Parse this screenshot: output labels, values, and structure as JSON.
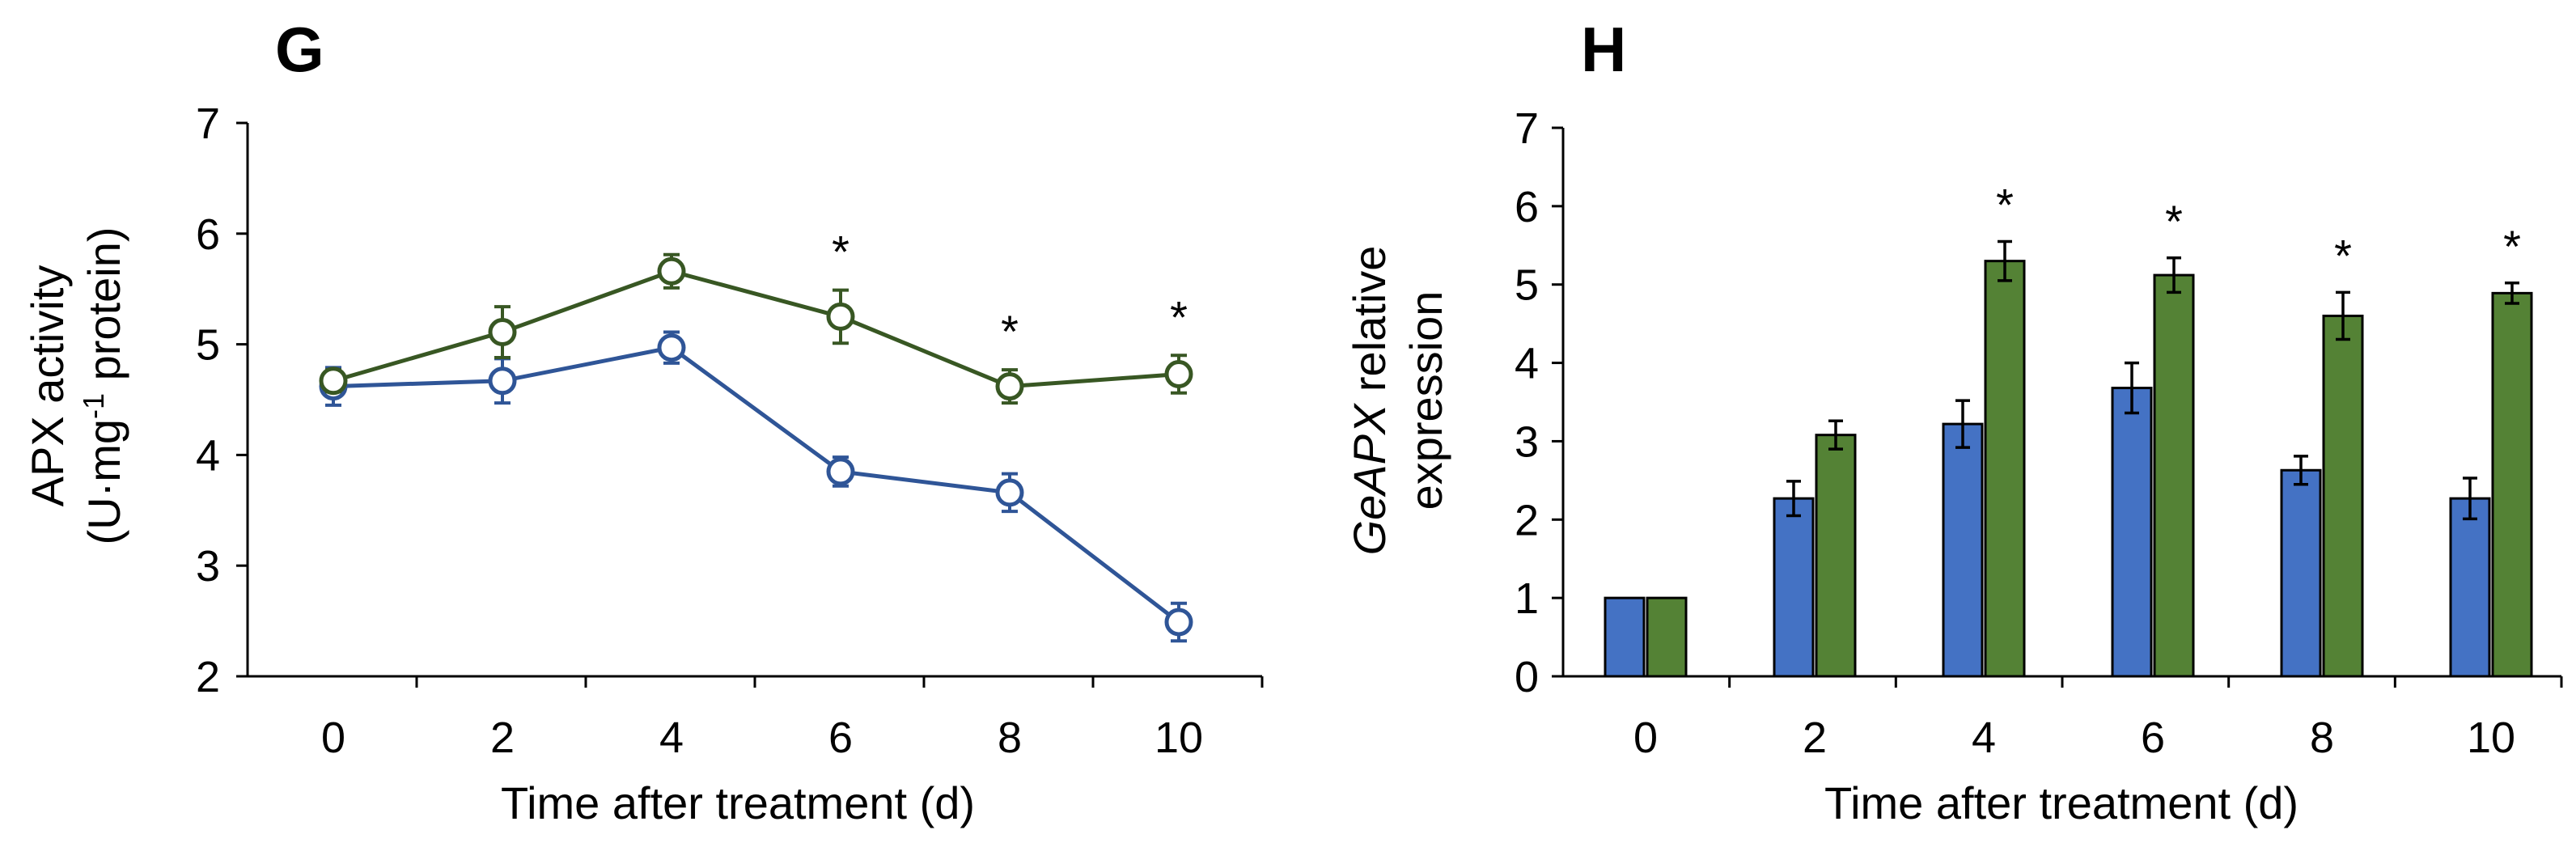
{
  "colors": {
    "blue": "#4472C4",
    "green": "#548235",
    "line_blue": "#2F5597",
    "line_green": "#385723"
  },
  "chart_data": [
    {
      "panel": "G",
      "type": "line",
      "x": [
        0,
        2,
        4,
        6,
        8,
        10
      ],
      "xticks": [
        "0",
        "2",
        "4",
        "6",
        "8",
        "10"
      ],
      "xlabel": "Time after treatment (d)",
      "ylabel_line1": "APX activity",
      "ylabel_line2_pre": "(U·mg",
      "ylabel_line2_sup": "-1",
      "ylabel_line2_post": " protein)",
      "ylim": [
        2,
        7
      ],
      "yticks": [
        "2",
        "3",
        "4",
        "5",
        "6",
        "7"
      ],
      "grid": false,
      "series": [
        {
          "color": "blue",
          "values": [
            4.62,
            4.67,
            4.97,
            3.85,
            3.66,
            2.49
          ],
          "errors": [
            0.17,
            0.2,
            0.14,
            0.13,
            0.17,
            0.17
          ]
        },
        {
          "color": "green",
          "values": [
            4.67,
            5.11,
            5.66,
            5.25,
            4.62,
            4.73
          ],
          "errors": [
            0.1,
            0.23,
            0.15,
            0.24,
            0.15,
            0.17
          ]
        }
      ],
      "significance": [
        {
          "x": 6,
          "label": "*"
        },
        {
          "x": 8,
          "label": "*"
        },
        {
          "x": 10,
          "label": "*"
        }
      ]
    },
    {
      "panel": "H",
      "type": "bar",
      "categories": [
        "0",
        "2",
        "4",
        "6",
        "8",
        "10"
      ],
      "xlabel": "Time after treatment (d)",
      "ylabel_italic": "GeAPX",
      "ylabel_rest": " relative",
      "ylabel_line2": "expression",
      "ylim": [
        0,
        7
      ],
      "yticks": [
        "0",
        "1",
        "2",
        "3",
        "4",
        "5",
        "6",
        "7"
      ],
      "grid": false,
      "series": [
        {
          "color": "blue",
          "values": [
            1.0,
            2.27,
            3.22,
            3.68,
            2.63,
            2.27
          ],
          "errors": [
            0,
            0.22,
            0.3,
            0.32,
            0.18,
            0.26
          ]
        },
        {
          "color": "green",
          "values": [
            1.0,
            3.08,
            5.3,
            5.12,
            4.6,
            4.89
          ],
          "errors": [
            0,
            0.18,
            0.25,
            0.22,
            0.3,
            0.13
          ]
        }
      ],
      "significance": [
        {
          "category": "4",
          "label": "*"
        },
        {
          "category": "6",
          "label": "*"
        },
        {
          "category": "8",
          "label": "*"
        },
        {
          "category": "10",
          "label": "*"
        }
      ]
    }
  ]
}
